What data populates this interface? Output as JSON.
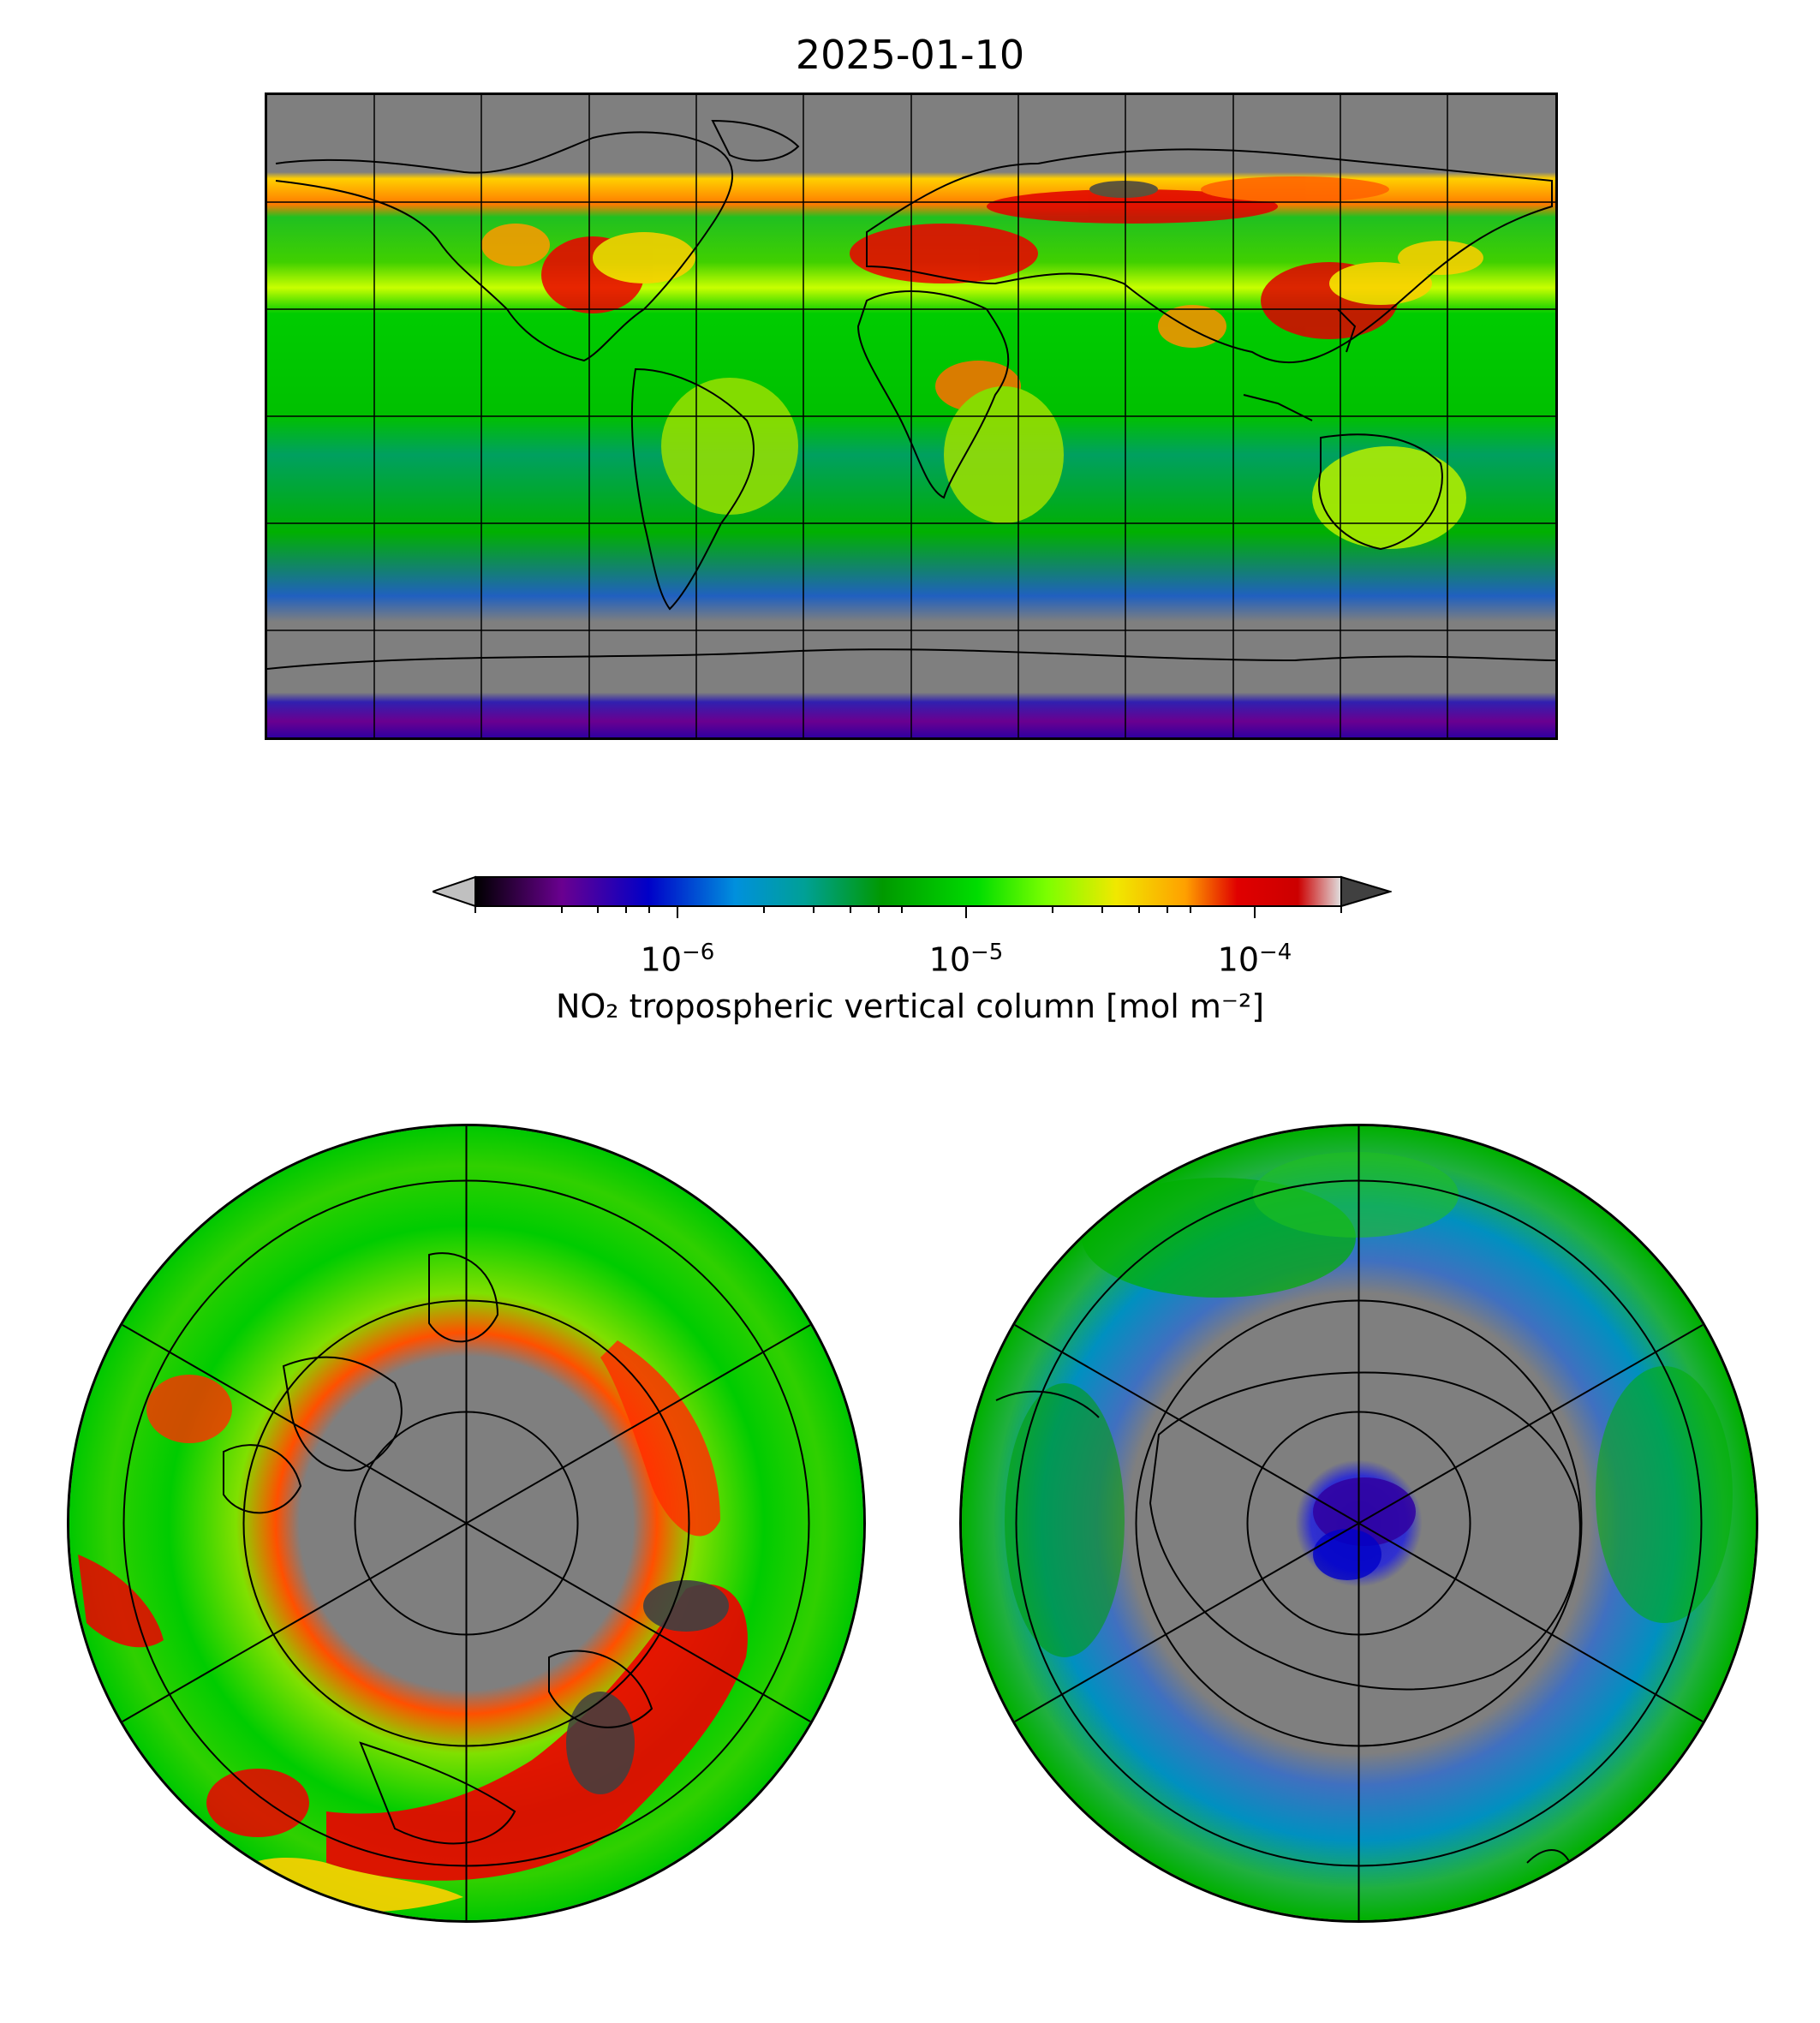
{
  "title": "2025-01-10",
  "colorbar": {
    "label": "NO₂ tropospheric vertical column [mol m⁻²]",
    "scale": "log",
    "range": [
      2e-07,
      0.0002
    ],
    "extend": "both",
    "ticks": [
      {
        "value": 1e-06,
        "base": "10",
        "exp": "−6"
      },
      {
        "value": 1e-05,
        "base": "10",
        "exp": "−5"
      },
      {
        "value": 0.0001,
        "base": "10",
        "exp": "−4"
      }
    ],
    "under_color": "#c0c0c0",
    "over_color": "#404040",
    "colormap": [
      "#000000",
      "#6a0090",
      "#0000c8",
      "#0090dd",
      "#00a096",
      "#009900",
      "#00dd00",
      "#7cff00",
      "#f0e800",
      "#ffa000",
      "#e00000",
      "#cc0000",
      "#d8d8d8"
    ]
  },
  "panels": [
    {
      "id": "global",
      "projection": "plate-carree",
      "gridlines": true
    },
    {
      "id": "north-polar",
      "projection": "north-polar-stereographic",
      "gridlines": true
    },
    {
      "id": "south-polar",
      "projection": "south-polar-stereographic",
      "gridlines": true
    }
  ],
  "colors": {
    "no_data": "#7f7f7f",
    "gridline": "#000000",
    "coastline": "#000000"
  }
}
